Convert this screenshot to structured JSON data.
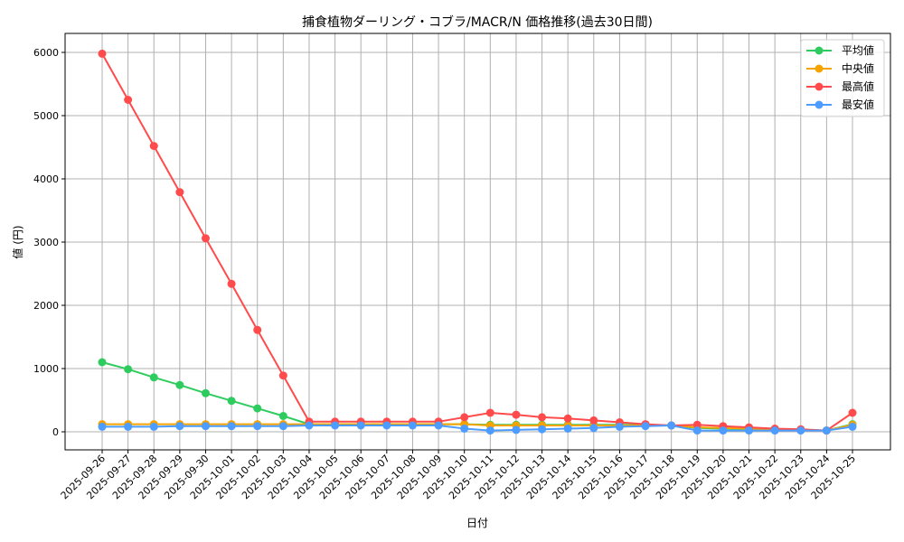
{
  "chart_data": {
    "type": "line",
    "title": "捕食植物ダーリング・コブラ/MACR/N 価格推移(過去30日間)",
    "xlabel": "日付",
    "ylabel": "値 (円)",
    "ylim": [
      -300,
      6270
    ],
    "yticks": [
      0,
      1000,
      2000,
      3000,
      4000,
      5000,
      6000
    ],
    "grid": true,
    "legend_position": "upper right",
    "x": [
      "2025-09-26",
      "2025-09-27",
      "2025-09-28",
      "2025-09-29",
      "2025-09-30",
      "2025-10-01",
      "2025-10-02",
      "2025-10-03",
      "2025-10-04",
      "2025-10-05",
      "2025-10-06",
      "2025-10-07",
      "2025-10-08",
      "2025-10-09",
      "2025-10-10",
      "2025-10-11",
      "2025-10-12",
      "2025-10-13",
      "2025-10-14",
      "2025-10-15",
      "2025-10-16",
      "2025-10-17",
      "2025-10-18",
      "2025-10-19",
      "2025-10-20",
      "2025-10-21",
      "2025-10-22",
      "2025-10-23",
      "2025-10-24",
      "2025-10-25"
    ],
    "series": [
      {
        "name": "平均値",
        "color": "#2ecc5e",
        "values": [
          1100,
          990,
          860,
          740,
          610,
          490,
          370,
          250,
          120,
          120,
          120,
          120,
          120,
          120,
          120,
          110,
          110,
          110,
          110,
          110,
          110,
          110,
          100,
          60,
          50,
          40,
          30,
          30,
          20,
          120
        ]
      },
      {
        "name": "中央値",
        "color": "#f5a300",
        "values": [
          120,
          120,
          120,
          120,
          120,
          120,
          120,
          120,
          120,
          120,
          120,
          120,
          120,
          120,
          120,
          100,
          100,
          100,
          100,
          100,
          100,
          100,
          100,
          70,
          60,
          50,
          40,
          30,
          20,
          110
        ]
      },
      {
        "name": "最高値",
        "color": "#ff4b4b",
        "values": [
          5980,
          5250,
          4520,
          3790,
          3060,
          2340,
          1610,
          890,
          160,
          160,
          160,
          160,
          160,
          160,
          230,
          300,
          270,
          230,
          210,
          180,
          150,
          120,
          100,
          110,
          90,
          70,
          50,
          40,
          20,
          300
        ]
      },
      {
        "name": "最安値",
        "color": "#4d9cff",
        "values": [
          80,
          80,
          80,
          90,
          90,
          90,
          90,
          90,
          100,
          100,
          100,
          100,
          100,
          100,
          50,
          20,
          30,
          40,
          50,
          60,
          80,
          90,
          100,
          20,
          20,
          20,
          20,
          20,
          20,
          80
        ]
      }
    ]
  }
}
